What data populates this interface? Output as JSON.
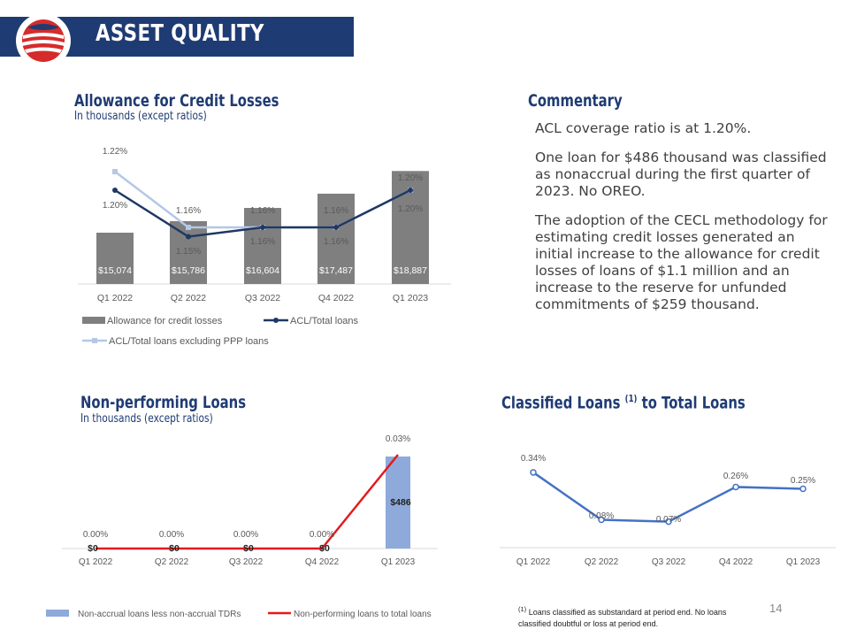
{
  "header": {
    "title": "ASSET QUALITY"
  },
  "page_number": "14",
  "sections": {
    "acl": {
      "title": "Allowance for Credit Losses",
      "subtitle": "In thousands  (except ratios)"
    },
    "commentary": {
      "title": "Commentary",
      "paragraphs": [
        "ACL coverage ratio is at 1.20%.",
        "One loan for $486 thousand was classified as nonaccrual during the first quarter of 2023. No OREO.",
        "The adoption of the CECL methodology for estimating credit losses generated an initial increase to the allowance for credit losses of loans of $1.1 million and an increase to the reserve for unfunded commitments of $259 thousand."
      ]
    },
    "npl": {
      "title": "Non-performing Loans",
      "subtitle": "In thousands  (except ratios)"
    },
    "classified": {
      "title": "Classified Loans",
      "superscript": "(1)",
      "title_suffix": " to Total Loans"
    }
  },
  "footnote": {
    "marker": "(1)",
    "text": "Loans classified as substandard at period end. No loans classified doubtful or loss at period end."
  },
  "colors": {
    "brand": "#1f3b73",
    "bar": "#7f7f7f",
    "acl_line": "#1f3864",
    "acl_ppp_line": "#b4c7e7",
    "npl_bar": "#8eaadb",
    "npl_line": "#e31a1c",
    "classified_line": "#4472c4"
  },
  "chart_data": [
    {
      "type": "bar",
      "title": "Allowance for Credit Losses",
      "categories": [
        "Q1 2022",
        "Q2 2022",
        "Q3 2022",
        "Q4 2022",
        "Q1 2023"
      ],
      "series": [
        {
          "name": "Allowance for credit losses",
          "kind": "bar",
          "values": [
            15074,
            15786,
            16604,
            17487,
            18887
          ],
          "labels": [
            "$15,074",
            "$15,786",
            "$16,604",
            "$17,487",
            "$18,887"
          ]
        },
        {
          "name": "ACL/Total loans",
          "kind": "line",
          "values": [
            1.2,
            1.15,
            1.16,
            1.16,
            1.2
          ],
          "labels": [
            "1.20%",
            "1.15%",
            "1.16%",
            "1.16%",
            "1.20%"
          ]
        },
        {
          "name": "ACL/Total loans excluding PPP loans",
          "kind": "line",
          "values": [
            1.22,
            1.16,
            1.16,
            1.16,
            1.2
          ],
          "labels": [
            "1.22%",
            "1.16%",
            "1.16%",
            "1.16%",
            "1.20%"
          ]
        }
      ],
      "legend": "bottom"
    },
    {
      "type": "bar",
      "title": "Non-performing Loans",
      "categories": [
        "Q1 2022",
        "Q2 2022",
        "Q3 2022",
        "Q4 2022",
        "Q1 2023"
      ],
      "series": [
        {
          "name": "Non-accrual loans less non-accrual TDRs",
          "kind": "bar",
          "values": [
            0,
            0,
            0,
            0,
            486
          ],
          "labels": [
            "$0",
            "$0",
            "$0",
            "$0",
            "$486"
          ]
        },
        {
          "name": "Non-performing loans to total loans",
          "kind": "line",
          "values": [
            0.0,
            0.0,
            0.0,
            0.0,
            0.03
          ],
          "labels": [
            "0.00%",
            "0.00%",
            "0.00%",
            "0.00%",
            "0.03%"
          ]
        }
      ],
      "legend": "bottom"
    },
    {
      "type": "line",
      "title": "Classified Loans (1) to Total Loans",
      "categories": [
        "Q1 2022",
        "Q2 2022",
        "Q3 2022",
        "Q4 2022",
        "Q1 2023"
      ],
      "series": [
        {
          "kind": "line",
          "values": [
            0.34,
            0.08,
            0.07,
            0.26,
            0.25
          ],
          "labels": [
            "0.34%",
            "0.08%",
            "0.07%",
            "0.26%",
            "0.25%"
          ]
        }
      ]
    }
  ]
}
